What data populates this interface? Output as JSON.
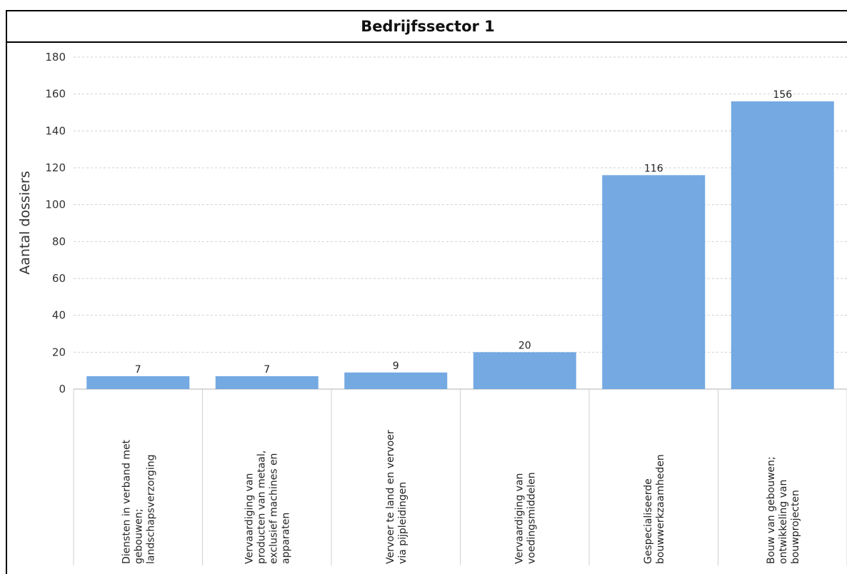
{
  "chart_data": {
    "type": "bar",
    "title": "Bedrijfssector 1",
    "ylabel": "Aantal dossiers",
    "xlabel": "",
    "ylim": [
      0,
      180
    ],
    "yticks": [
      0,
      20,
      40,
      60,
      80,
      100,
      120,
      140,
      160,
      180
    ],
    "grid": true,
    "bar_color": "#74a9e2",
    "categories": [
      [
        "Diensten in verband met",
        "gebouwen;",
        "landschapsverzorging"
      ],
      [
        "Vervaardiging van",
        "producten van metaal,",
        "exclusief machines en",
        "apparaten"
      ],
      [
        "Vervoer te land en vervoer",
        "via pijpleidingen"
      ],
      [
        "Vervaardiging van",
        "voedingsmiddelen"
      ],
      [
        "Gespecialiseerde",
        "bouwwerkzaamheden"
      ],
      [
        "Bouw van gebouwen;",
        "ontwikkeling van",
        "bouwprojecten"
      ]
    ],
    "values": [
      7,
      7,
      9,
      20,
      116,
      156
    ],
    "data_labels": [
      "7",
      "7",
      "9",
      "20",
      "116",
      "156"
    ]
  }
}
